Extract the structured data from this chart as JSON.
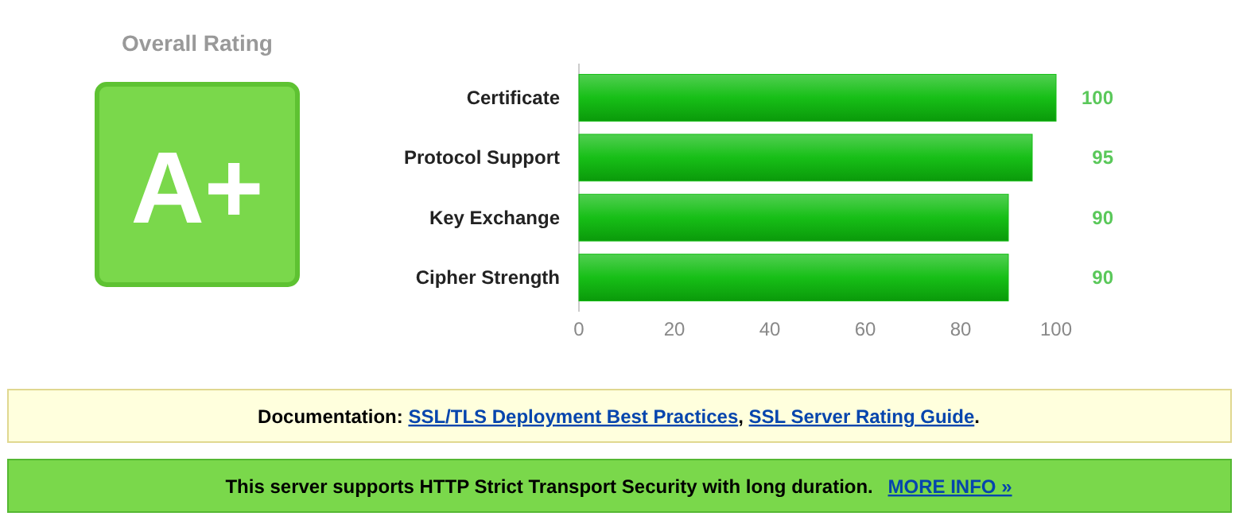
{
  "chart_data": {
    "type": "bar",
    "orientation": "horizontal",
    "categories": [
      "Certificate",
      "Protocol Support",
      "Key Exchange",
      "Cipher Strength"
    ],
    "values": [
      100,
      95,
      90,
      90
    ],
    "color": "#17bf17",
    "data_labels": true,
    "xlim": [
      0,
      100
    ],
    "xticks": [
      0,
      20,
      40,
      60,
      80,
      100
    ],
    "grid": false,
    "annotations": [
      "Overall Rating",
      "A+",
      "Documentation:",
      "SSL/TLS Deployment Best Practices",
      ", ",
      "SSL Server Rating Guide",
      ".",
      "This server supports HTTP Strict Transport Security with long duration.",
      "MORE INFO »"
    ]
  }
}
